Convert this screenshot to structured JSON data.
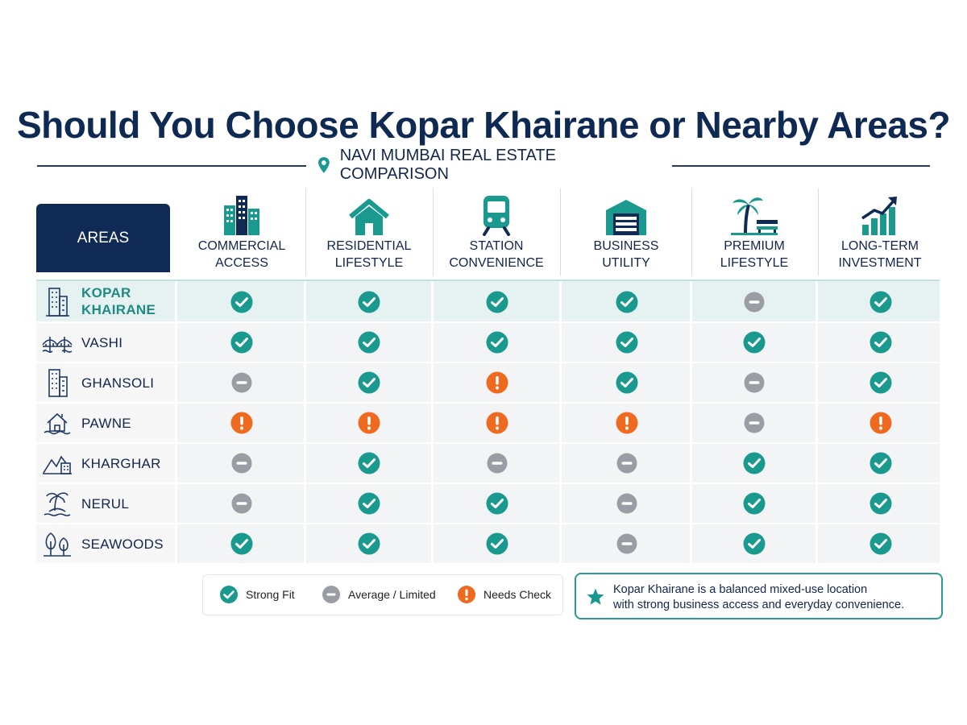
{
  "title": "Should You Choose Kopar Khairane or Nearby Areas?",
  "subtitle": "NAVI MUMBAI REAL ESTATE COMPARISON",
  "subtitle_icon": "location-pin-icon",
  "areas_header": "AREAS",
  "colors": {
    "navy": "#0f2b55",
    "teal": "#1a9a8e",
    "gray": "#9a9ea4",
    "orange": "#ee6a1f"
  },
  "columns": [
    {
      "line1": "COMMERCIAL",
      "line2": "ACCESS",
      "icon": "office-buildings-icon"
    },
    {
      "line1": "RESIDENTIAL",
      "line2": "LIFESTYLE",
      "icon": "house-icon"
    },
    {
      "line1": "STATION",
      "line2": "CONVENIENCE",
      "icon": "train-icon"
    },
    {
      "line1": "BUSINESS",
      "line2": "UTILITY",
      "icon": "warehouse-icon"
    },
    {
      "line1": "PREMIUM",
      "line2": "LIFESTYLE",
      "icon": "palm-bench-icon"
    },
    {
      "line1": "LONG-TERM",
      "line2": "INVESTMENT",
      "icon": "growth-chart-icon"
    }
  ],
  "rows": [
    {
      "line1": "KOPAR",
      "line2": "KHAIRANE",
      "icon": "building-icon",
      "highlight": true,
      "ratings": [
        "strong",
        "strong",
        "strong",
        "strong",
        "average",
        "strong"
      ]
    },
    {
      "line1": "VASHI",
      "line2": "",
      "icon": "bridge-icon",
      "highlight": false,
      "ratings": [
        "strong",
        "strong",
        "strong",
        "strong",
        "strong",
        "strong"
      ]
    },
    {
      "line1": "GHANSOLI",
      "line2": "",
      "icon": "building-icon",
      "highlight": false,
      "ratings": [
        "average",
        "strong",
        "check",
        "strong",
        "average",
        "strong"
      ]
    },
    {
      "line1": "PAWNE",
      "line2": "",
      "icon": "village-house-icon",
      "highlight": false,
      "ratings": [
        "check",
        "check",
        "check",
        "check",
        "average",
        "check"
      ]
    },
    {
      "line1": "KHARGHAR",
      "line2": "",
      "icon": "hills-city-icon",
      "highlight": false,
      "ratings": [
        "average",
        "strong",
        "average",
        "average",
        "strong",
        "strong"
      ]
    },
    {
      "line1": "NERUL",
      "line2": "",
      "icon": "palm-island-icon",
      "highlight": false,
      "ratings": [
        "average",
        "strong",
        "strong",
        "average",
        "strong",
        "strong"
      ]
    },
    {
      "line1": "SEAWOODS",
      "line2": "",
      "icon": "trees-icon",
      "highlight": false,
      "ratings": [
        "strong",
        "strong",
        "strong",
        "average",
        "strong",
        "strong"
      ]
    }
  ],
  "legend": {
    "strong": "Strong Fit",
    "average": "Average / Limited",
    "check": "Needs Check"
  },
  "callout": {
    "icon": "star-icon",
    "line1": "Kopar Khairane is a balanced mixed-use location",
    "line2": "with strong business access and everyday convenience."
  }
}
